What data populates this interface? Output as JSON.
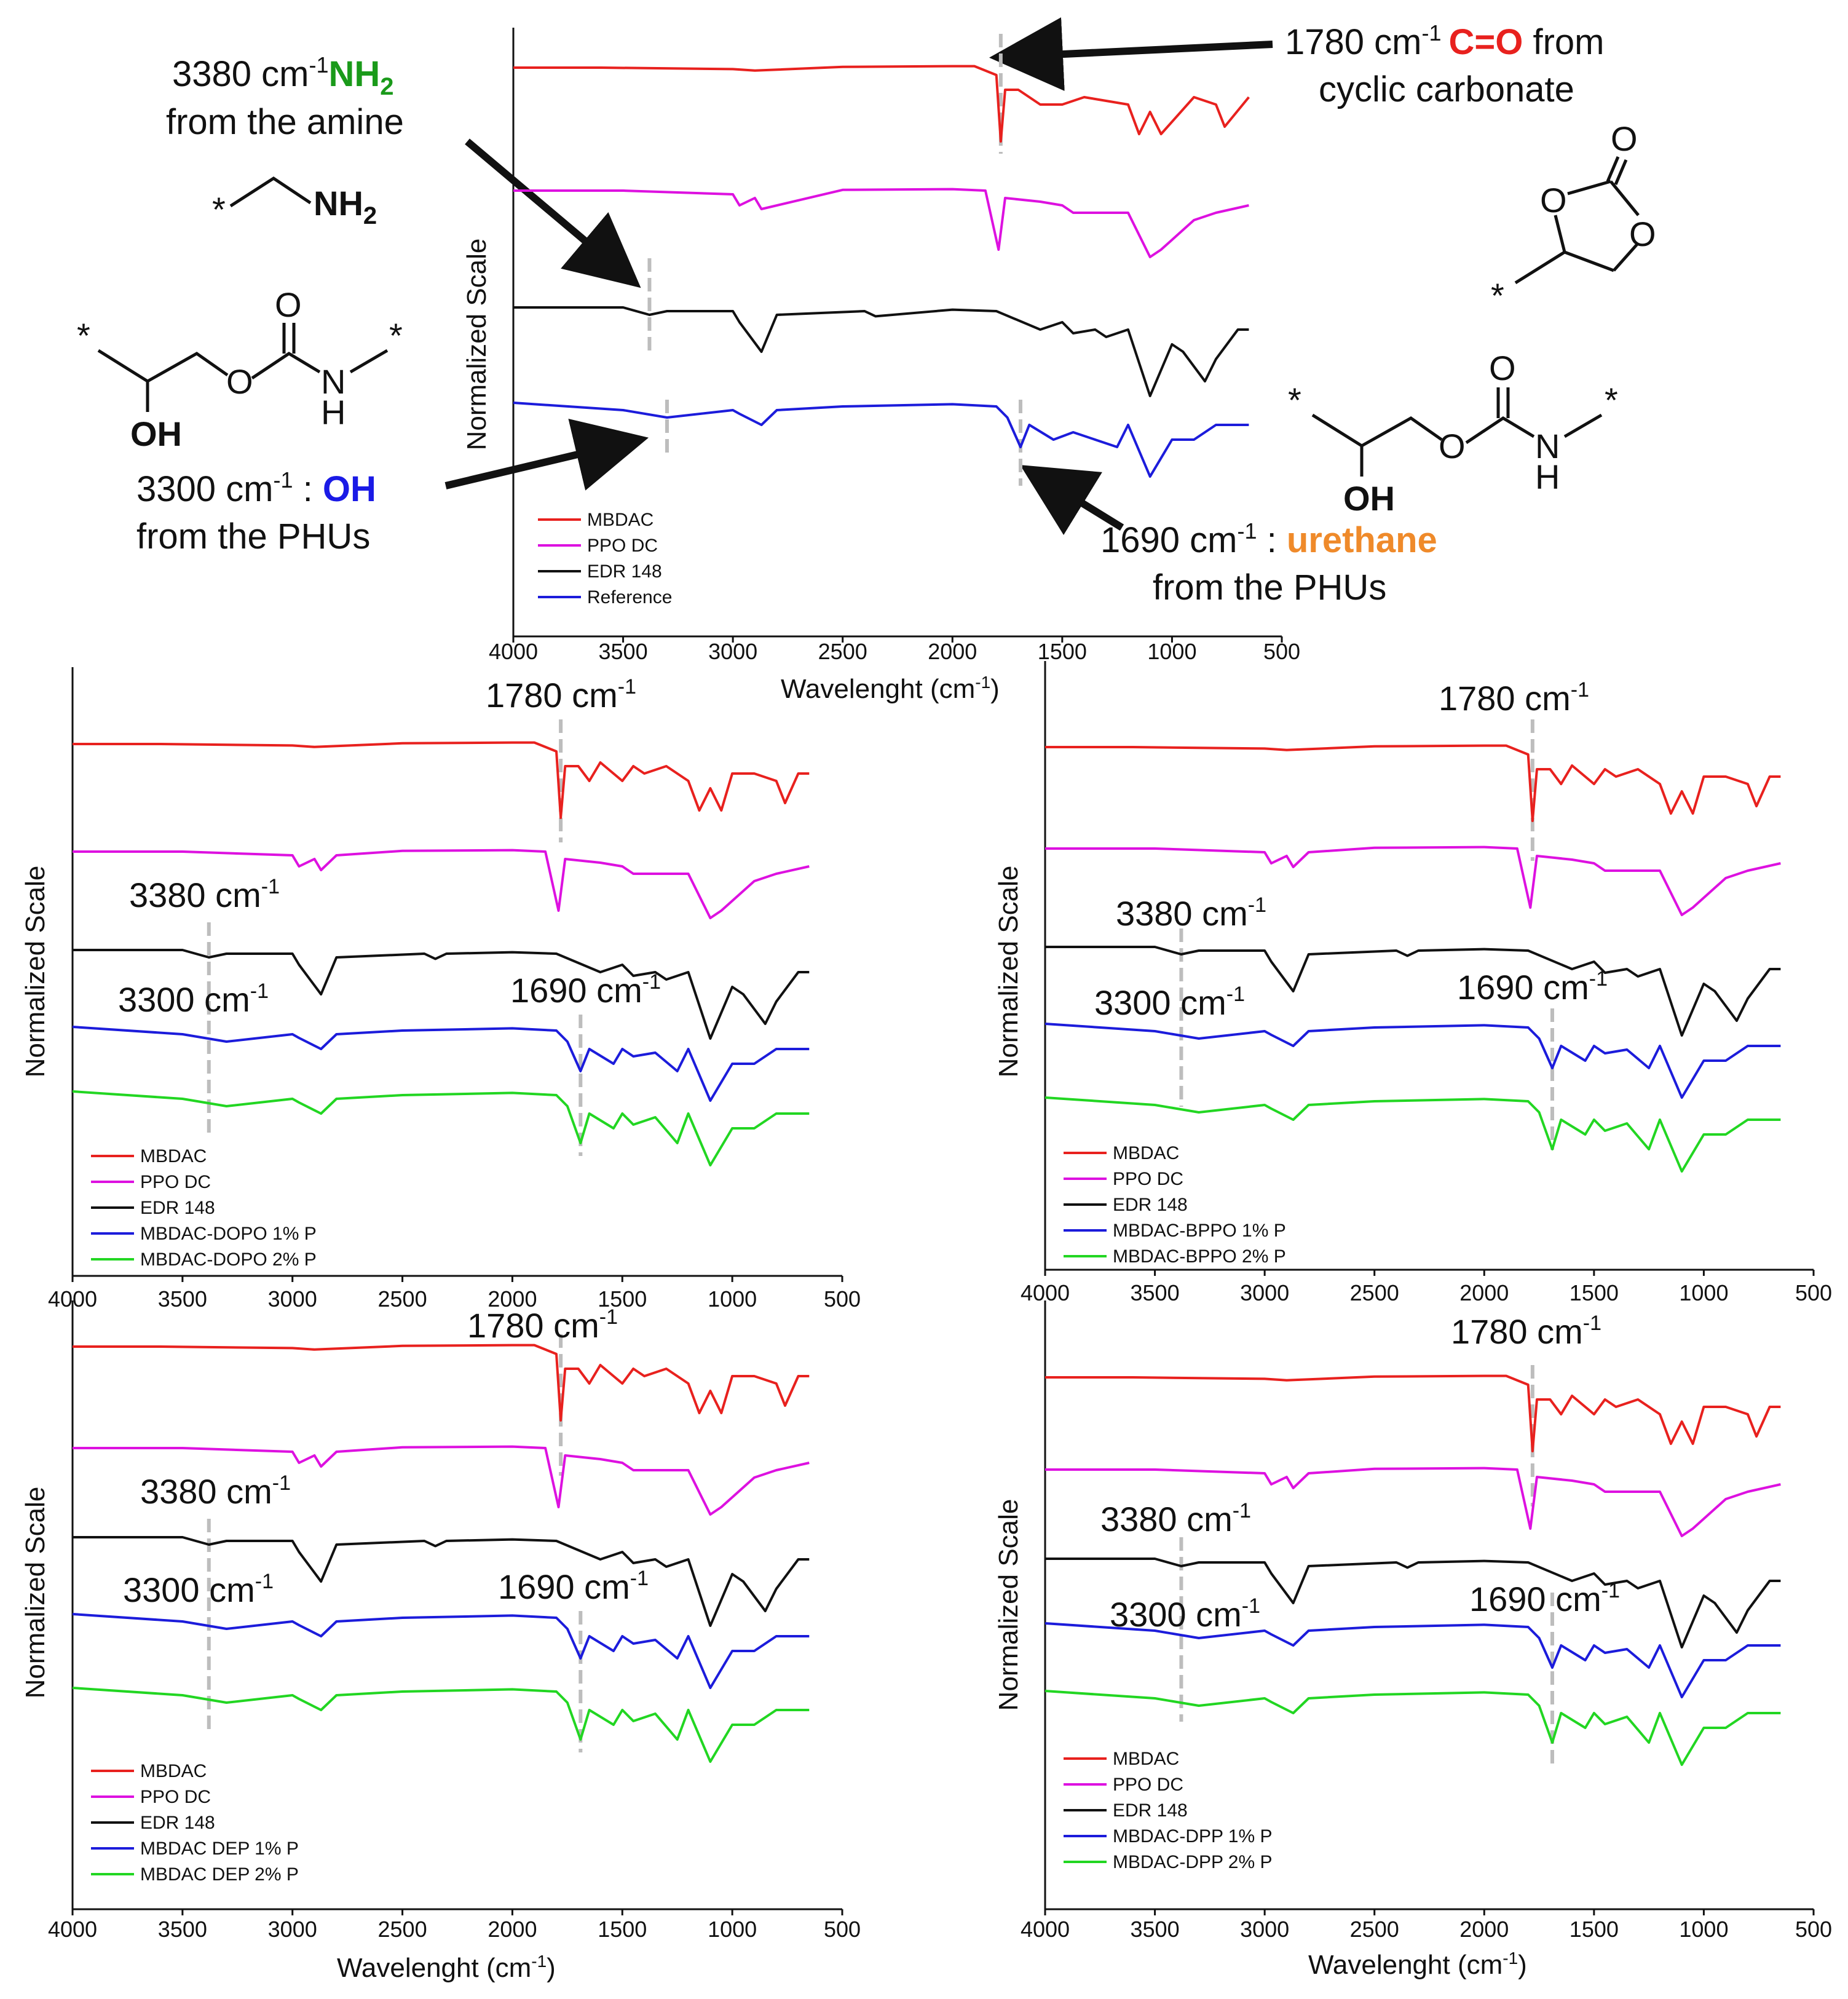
{
  "colors": {
    "red": "#e8211e",
    "magenta": "#dd11e0",
    "black": "#111111",
    "blue": "#1c1cdb",
    "green": "#22d622",
    "dash": "#bdbdbd",
    "chem_green": "#1a9a1a",
    "chem_blue": "#1a1ae6",
    "chem_orange": "#ef8a2a",
    "chem_red": "#e8211e"
  },
  "callouts": {
    "nh2": {
      "wavenumber": "3380 cm",
      "sup": "-1",
      "group": "NH",
      "sub": "2",
      "line2": "from the amine"
    },
    "oh": {
      "wavenumber": "3300 cm",
      "sup": "-1",
      "sep": " : ",
      "group": "OH",
      "line2": "from the PHUs"
    },
    "co": {
      "wavenumber": "1780 cm",
      "sup": "-1",
      "group": "C=O",
      "tail": " from",
      "line2": "cyclic carbonate"
    },
    "urethane": {
      "wavenumber": "1690 cm",
      "sup": "-1",
      "sep": " : ",
      "group": "urethane",
      "line2": "from the PHUs"
    }
  },
  "chem": {
    "star": "*",
    "nh2_group": "NH",
    "nh2_sub": "2",
    "o": "O",
    "n": "N",
    "h": "H",
    "oh": "OH"
  },
  "chart_data": [
    {
      "type": "line",
      "id": "main",
      "xlabel": "Wavelenght (cm",
      "xlabel_sup": "-1",
      "xlabel_tail": ")",
      "ylabel": "Normalized Scale",
      "xlim": [
        4000,
        500
      ],
      "xticks": [
        "4000",
        "3500",
        "3000",
        "2500",
        "2000",
        "1500",
        "1000",
        "500"
      ],
      "legend_position": "bottom-left",
      "series": [
        {
          "name": "MBDAC",
          "color": "red",
          "x": [
            4000,
            3600,
            3000,
            2900,
            2500,
            2000,
            1900,
            1800,
            1780,
            1760,
            1700,
            1600,
            1500,
            1400,
            1200,
            1150,
            1100,
            1050,
            900,
            800,
            760,
            650
          ],
          "y": [
            0,
            0,
            -0.02,
            -0.04,
            0.01,
            0.02,
            0.02,
            -0.1,
            -1,
            -0.3,
            -0.3,
            -0.5,
            -0.5,
            -0.4,
            -0.5,
            -0.9,
            -0.6,
            -0.9,
            -0.4,
            -0.5,
            -0.8,
            -0.4
          ]
        },
        {
          "name": "PPO DC",
          "color": "magenta",
          "x": [
            4000,
            3500,
            3000,
            2970,
            2900,
            2870,
            2500,
            2000,
            1850,
            1790,
            1760,
            1600,
            1500,
            1450,
            1380,
            1200,
            1100,
            1050,
            900,
            800,
            650
          ],
          "y": [
            0,
            0,
            -0.05,
            -0.2,
            -0.1,
            -0.25,
            0.01,
            0.02,
            0,
            -0.8,
            -0.1,
            -0.15,
            -0.2,
            -0.3,
            -0.3,
            -0.3,
            -0.9,
            -0.8,
            -0.4,
            -0.3,
            -0.2
          ]
        },
        {
          "name": "EDR 148",
          "color": "black",
          "x": [
            4000,
            3500,
            3380,
            3300,
            3000,
            2970,
            2870,
            2800,
            2400,
            2350,
            2000,
            1800,
            1600,
            1500,
            1450,
            1350,
            1300,
            1200,
            1100,
            1000,
            950,
            850,
            800,
            700,
            650
          ],
          "y": [
            0,
            0,
            -0.1,
            -0.05,
            -0.05,
            -0.2,
            -0.6,
            -0.1,
            -0.05,
            -0.12,
            -0.03,
            -0.05,
            -0.3,
            -0.2,
            -0.35,
            -0.3,
            -0.4,
            -0.3,
            -1.2,
            -0.5,
            -0.6,
            -1.0,
            -0.7,
            -0.3,
            -0.3
          ]
        },
        {
          "name": "Reference",
          "color": "blue",
          "x": [
            4000,
            3500,
            3300,
            3000,
            2970,
            2870,
            2800,
            2500,
            2000,
            1800,
            1750,
            1690,
            1650,
            1540,
            1450,
            1250,
            1200,
            1100,
            1000,
            900,
            800,
            650
          ],
          "y": [
            0,
            -0.1,
            -0.2,
            -0.1,
            -0.15,
            -0.3,
            -0.1,
            -0.05,
            -0.02,
            -0.05,
            -0.2,
            -0.6,
            -0.3,
            -0.5,
            -0.4,
            -0.6,
            -0.3,
            -1.0,
            -0.5,
            -0.5,
            -0.3,
            -0.3
          ]
        }
      ],
      "annotations": []
    },
    {
      "type": "line",
      "id": "dopo",
      "ylabel": "Normalized Scale",
      "xlim": [
        4000,
        500
      ],
      "xticks": [
        "4000",
        "3500",
        "3000",
        "2500",
        "2000",
        "1500",
        "1000",
        "500"
      ],
      "legend_position": "bottom-left",
      "series": [
        {
          "name": "MBDAC",
          "color": "red"
        },
        {
          "name": "PPO DC",
          "color": "magenta"
        },
        {
          "name": "EDR 148",
          "color": "black"
        },
        {
          "name": "MBDAC-DOPO 1% P",
          "color": "blue"
        },
        {
          "name": "MBDAC-DOPO 2% P",
          "color": "green"
        }
      ],
      "annotations": [
        {
          "text": "1780 cm",
          "sup": "-1",
          "x": 1780
        },
        {
          "text": "3380 cm",
          "sup": "-1",
          "x": 3380
        },
        {
          "text": "3300 cm",
          "sup": "-1",
          "x": 3300
        },
        {
          "text": "1690 cm",
          "sup": "-1",
          "x": 1690
        }
      ]
    },
    {
      "type": "line",
      "id": "bppo",
      "ylabel": "Normalized Scale",
      "xlim": [
        4000,
        500
      ],
      "xticks": [
        "4000",
        "3500",
        "3000",
        "2500",
        "2000",
        "1500",
        "1000",
        "500"
      ],
      "legend_position": "bottom-left",
      "series": [
        {
          "name": "MBDAC",
          "color": "red"
        },
        {
          "name": "PPO DC",
          "color": "magenta"
        },
        {
          "name": "EDR 148",
          "color": "black"
        },
        {
          "name": "MBDAC-BPPO 1% P",
          "color": "blue"
        },
        {
          "name": "MBDAC-BPPO 2% P",
          "color": "green"
        }
      ],
      "annotations": [
        {
          "text": "1780 cm",
          "sup": "-1",
          "x": 1780
        },
        {
          "text": "3380 cm",
          "sup": "-1",
          "x": 3380
        },
        {
          "text": "3300 cm",
          "sup": "-1",
          "x": 3300
        },
        {
          "text": "1690 cm",
          "sup": "-1",
          "x": 1690
        }
      ]
    },
    {
      "type": "line",
      "id": "dep",
      "xlabel": "Wavelenght (cm",
      "xlabel_sup": "-1",
      "xlabel_tail": ")",
      "ylabel": "Normalized Scale",
      "xlim": [
        4000,
        500
      ],
      "xticks": [
        "4000",
        "3500",
        "3000",
        "2500",
        "2000",
        "1500",
        "1000",
        "500"
      ],
      "legend_position": "bottom-left",
      "series": [
        {
          "name": "MBDAC",
          "color": "red"
        },
        {
          "name": "PPO DC",
          "color": "magenta"
        },
        {
          "name": "EDR 148",
          "color": "black"
        },
        {
          "name": "MBDAC DEP 1% P",
          "color": "blue"
        },
        {
          "name": "MBDAC DEP 2% P",
          "color": "green"
        }
      ],
      "annotations": [
        {
          "text": "1780 cm",
          "sup": "-1",
          "x": 1780
        },
        {
          "text": "3380 cm",
          "sup": "-1",
          "x": 3380
        },
        {
          "text": "3300 cm",
          "sup": "-1",
          "x": 3300
        },
        {
          "text": "1690 cm",
          "sup": "-1",
          "x": 1690
        }
      ]
    },
    {
      "type": "line",
      "id": "dpp",
      "xlabel": "Wavelenght (cm",
      "xlabel_sup": "-1",
      "xlabel_tail": ")",
      "ylabel": "Normalized Scale",
      "xlim": [
        4000,
        500
      ],
      "xticks": [
        "4000",
        "3500",
        "3000",
        "2500",
        "2000",
        "1500",
        "1000",
        "500"
      ],
      "legend_position": "bottom-left",
      "series": [
        {
          "name": "MBDAC",
          "color": "red"
        },
        {
          "name": "PPO DC",
          "color": "magenta"
        },
        {
          "name": "EDR 148",
          "color": "black"
        },
        {
          "name": "MBDAC-DPP 1% P",
          "color": "blue"
        },
        {
          "name": "MBDAC-DPP 2% P",
          "color": "green"
        }
      ],
      "annotations": [
        {
          "text": "1780 cm",
          "sup": "-1",
          "x": 1780
        },
        {
          "text": "3380 cm",
          "sup": "-1",
          "x": 3380
        },
        {
          "text": "3300 cm",
          "sup": "-1",
          "x": 3300
        },
        {
          "text": "1690 cm",
          "sup": "-1",
          "x": 1690
        }
      ]
    }
  ]
}
